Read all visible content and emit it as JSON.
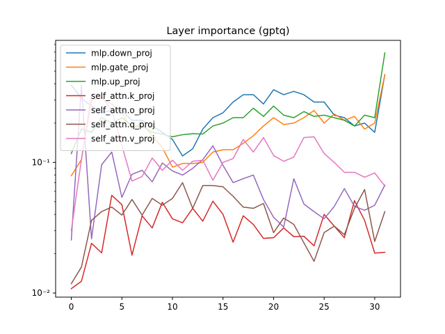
{
  "chart_data": {
    "type": "line",
    "title": "Layer importance (gptq)",
    "xlabel": "",
    "ylabel": "",
    "y_scale": "log",
    "xlim": [
      -1.55,
      32.55
    ],
    "ylim": [
      0.0093,
      0.86
    ],
    "x_ticks": [
      0,
      5,
      10,
      15,
      20,
      25,
      30
    ],
    "x_tick_labels": [
      "0",
      "5",
      "10",
      "15",
      "20",
      "25",
      "30"
    ],
    "y_ticks": [
      0.01,
      0.1
    ],
    "y_tick_labels": [
      "10⁻²",
      "10⁻¹"
    ],
    "legend_position": "upper-left",
    "grid": false,
    "x": [
      0,
      1,
      2,
      3,
      4,
      5,
      6,
      7,
      8,
      9,
      10,
      11,
      12,
      13,
      14,
      15,
      16,
      17,
      18,
      19,
      20,
      21,
      22,
      23,
      24,
      25,
      26,
      27,
      28,
      29,
      30,
      31
    ],
    "series": [
      {
        "name": "mlp.down_proj",
        "color": "#1f77b4",
        "values": [
          0.39,
          0.31,
          0.27,
          0.24,
          0.25,
          0.25,
          0.21,
          0.21,
          0.19,
          0.17,
          0.15,
          0.112,
          0.127,
          0.18,
          0.22,
          0.24,
          0.29,
          0.33,
          0.33,
          0.28,
          0.36,
          0.33,
          0.35,
          0.33,
          0.29,
          0.29,
          0.23,
          0.22,
          0.19,
          0.2,
          0.17,
          0.47
        ]
      },
      {
        "name": "mlp.gate_proj",
        "color": "#ff7f0e",
        "values": [
          0.079,
          0.105,
          0.3,
          0.31,
          0.28,
          0.24,
          0.18,
          0.2,
          0.16,
          0.13,
          0.092,
          0.098,
          0.098,
          0.1,
          0.12,
          0.125,
          0.125,
          0.14,
          0.16,
          0.19,
          0.22,
          0.195,
          0.2,
          0.22,
          0.25,
          0.2,
          0.235,
          0.21,
          0.225,
          0.18,
          0.2,
          0.47
        ]
      },
      {
        "name": "mlp.up_proj",
        "color": "#2ca02c",
        "values": [
          0.117,
          0.18,
          0.17,
          0.22,
          0.2,
          0.22,
          0.19,
          0.19,
          0.17,
          0.165,
          0.157,
          0.163,
          0.166,
          0.165,
          0.19,
          0.2,
          0.22,
          0.22,
          0.26,
          0.225,
          0.27,
          0.23,
          0.22,
          0.245,
          0.225,
          0.23,
          0.22,
          0.21,
          0.19,
          0.23,
          0.22,
          0.69
        ]
      },
      {
        "name": "self_attn.k_proj",
        "color": "#d62728",
        "values": [
          0.0108,
          0.0123,
          0.024,
          0.0203,
          0.056,
          0.0475,
          0.0195,
          0.039,
          0.0315,
          0.0495,
          0.037,
          0.0345,
          0.0445,
          0.0355,
          0.0505,
          0.04,
          0.0245,
          0.039,
          0.0335,
          0.0262,
          0.0265,
          0.0315,
          0.027,
          0.0272,
          0.023,
          0.04,
          0.0325,
          0.0265,
          0.051,
          0.036,
          0.0202,
          0.0205
        ]
      },
      {
        "name": "self_attn.o_proj",
        "color": "#9467bd",
        "values": [
          0.0255,
          0.39,
          0.026,
          0.096,
          0.12,
          0.054,
          0.081,
          0.087,
          0.071,
          0.099,
          0.086,
          0.08,
          0.09,
          0.105,
          0.134,
          0.095,
          0.07,
          0.075,
          0.08,
          0.052,
          0.038,
          0.032,
          0.075,
          0.048,
          0.042,
          0.037,
          0.046,
          0.063,
          0.046,
          0.043,
          0.047,
          0.067
        ]
      },
      {
        "name": "self_attn.q_proj",
        "color": "#8c564b",
        "values": [
          0.0118,
          0.0158,
          0.036,
          0.042,
          0.0455,
          0.0395,
          0.052,
          0.0395,
          0.053,
          0.047,
          0.053,
          0.07,
          0.0445,
          0.0665,
          0.0665,
          0.065,
          0.055,
          0.0455,
          0.0445,
          0.0485,
          0.029,
          0.0375,
          0.0335,
          0.0242,
          0.0175,
          0.029,
          0.0325,
          0.028,
          0.0445,
          0.062,
          0.0248,
          0.042
        ]
      },
      {
        "name": "self_attn.v_proj",
        "color": "#e377c2",
        "values": [
          0.03,
          0.105,
          0.33,
          0.32,
          0.25,
          0.135,
          0.072,
          0.078,
          0.108,
          0.087,
          0.104,
          0.087,
          0.102,
          0.104,
          0.073,
          0.1,
          0.107,
          0.15,
          0.12,
          0.155,
          0.113,
          0.102,
          0.11,
          0.155,
          0.157,
          0.117,
          0.1,
          0.084,
          0.084,
          0.077,
          0.083,
          0.066
        ]
      }
    ]
  }
}
